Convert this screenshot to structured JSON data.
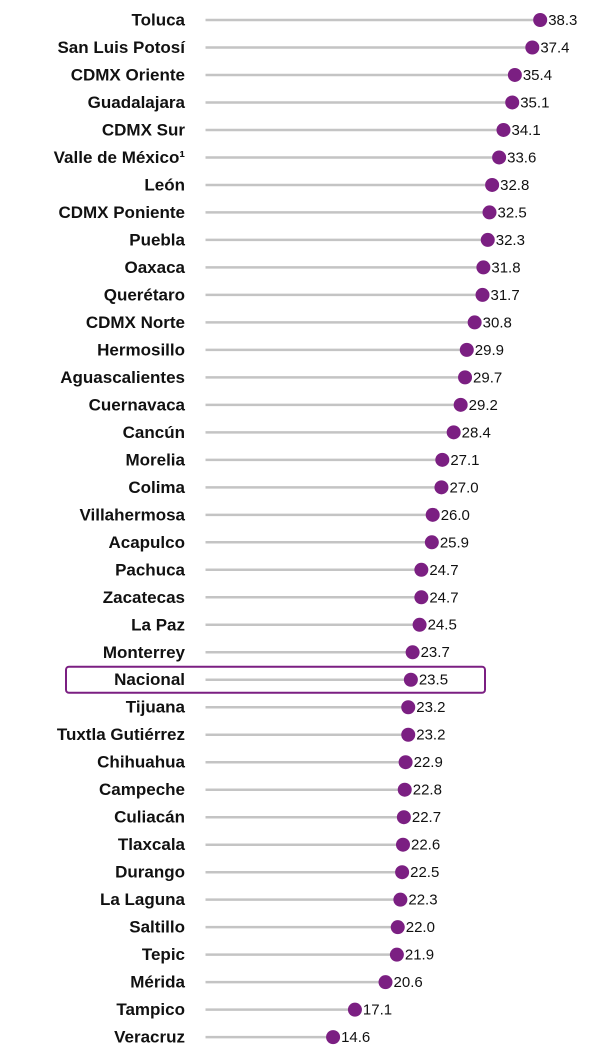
{
  "chart_data": {
    "type": "lollipop",
    "categories": [
      "Toluca",
      "San Luis Potosí",
      "CDMX Oriente",
      "Guadalajara",
      "CDMX Sur",
      "Valle de México¹",
      "León",
      "CDMX Poniente",
      "Puebla",
      "Oaxaca",
      "Querétaro",
      "CDMX Norte",
      "Hermosillo",
      "Aguascalientes",
      "Cuernavaca",
      "Cancún",
      "Morelia",
      "Colima",
      "Villahermosa",
      "Acapulco",
      "Pachuca",
      "Zacatecas",
      "La Paz",
      "Monterrey",
      "Nacional",
      "Tijuana",
      "Tuxtla Gutiérrez",
      "Chihuahua",
      "Campeche",
      "Culiacán",
      "Tlaxcala",
      "Durango",
      "La Laguna",
      "Saltillo",
      "Tepic",
      "Mérida",
      "Tampico",
      "Veracruz"
    ],
    "values": [
      38.3,
      37.4,
      35.4,
      35.1,
      34.1,
      33.6,
      32.8,
      32.5,
      32.3,
      31.8,
      31.7,
      30.8,
      29.9,
      29.7,
      29.2,
      28.4,
      27.1,
      27.0,
      26.0,
      25.9,
      24.7,
      24.7,
      24.5,
      23.7,
      23.5,
      23.2,
      23.2,
      22.9,
      22.8,
      22.7,
      22.6,
      22.5,
      22.3,
      22.0,
      21.9,
      20.6,
      17.1,
      14.6
    ],
    "value_labels": [
      "38.3",
      "37.4",
      "35.4",
      "35.1",
      "34.1",
      "33.6",
      "32.8",
      "32.5",
      "32.3",
      "31.8",
      "31.7",
      "30.8",
      "29.9",
      "29.7",
      "29.2",
      "28.4",
      "27.1",
      "27.0",
      "26.0",
      "25.9",
      "24.7",
      "24.7",
      "24.5",
      "23.7",
      "23.5",
      "23.2",
      "23.2",
      "22.9",
      "22.8",
      "22.7",
      "22.6",
      "22.5",
      "22.3",
      "22.0",
      "21.9",
      "20.6",
      "17.1",
      "14.6"
    ],
    "color": "#7b1f82",
    "stem_color": "#c4c4c4",
    "highlight_index": 24,
    "xlim": [
      0,
      44
    ]
  }
}
